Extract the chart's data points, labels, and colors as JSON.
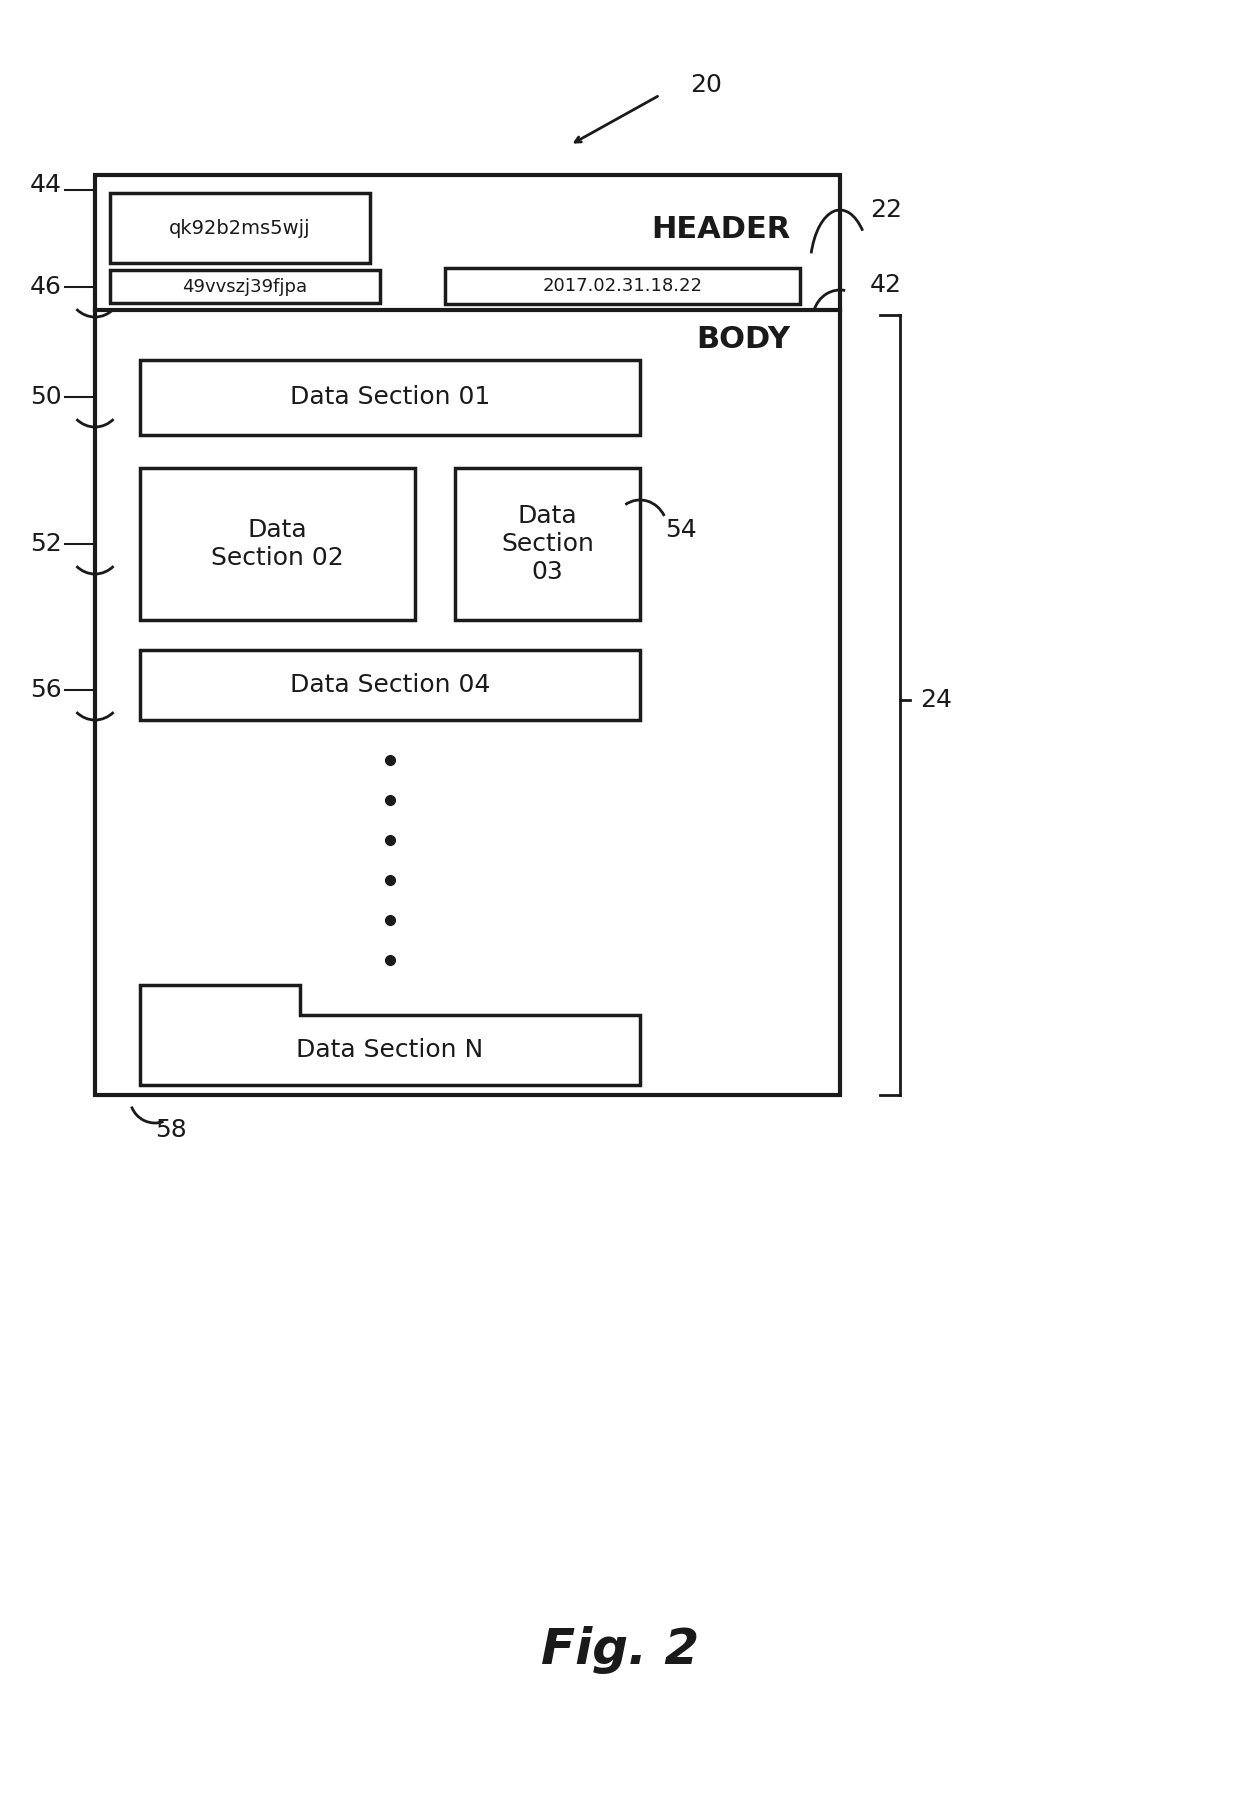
{
  "bg_color": "#ffffff",
  "fig_label": "Fig. 2",
  "ref_num_20": "20",
  "ref_num_22": "22",
  "ref_num_24": "24",
  "ref_num_42": "42",
  "ref_num_44": "44",
  "ref_num_46": "46",
  "ref_num_50": "50",
  "ref_num_52": "52",
  "ref_num_54": "54",
  "ref_num_56": "56",
  "ref_num_58": "58",
  "header_label": "HEADER",
  "body_label": "BODY",
  "hash1": "qk92b2ms5wjj",
  "hash2": "49vvszj39fjpa",
  "timestamp": "2017.02.31.18.22",
  "ds01": "Data Section 01",
  "ds02": "Data\nSection 02",
  "ds03": "Data\nSection\n03",
  "ds04": "Data Section 04",
  "dsN": "Data Section N",
  "line_color": "#1a1a1a",
  "text_color": "#1a1a1a"
}
